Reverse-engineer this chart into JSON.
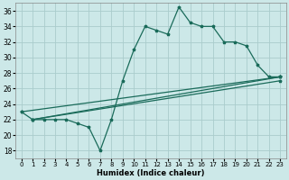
{
  "xlabel": "Humidex (Indice chaleur)",
  "ylabel": "",
  "bg_color": "#cce8e8",
  "grid_color": "#aacccc",
  "line_color": "#1a6b5a",
  "xlim": [
    -0.5,
    23.5
  ],
  "ylim": [
    17,
    37
  ],
  "yticks": [
    18,
    20,
    22,
    24,
    26,
    28,
    30,
    32,
    34,
    36
  ],
  "xticks": [
    0,
    1,
    2,
    3,
    4,
    5,
    6,
    7,
    8,
    9,
    10,
    11,
    12,
    13,
    14,
    15,
    16,
    17,
    18,
    19,
    20,
    21,
    22,
    23
  ],
  "line1_x": [
    0,
    1,
    2,
    3,
    4,
    5,
    6,
    7,
    8,
    9,
    10,
    11,
    12,
    13,
    14,
    15,
    16,
    17,
    18,
    19,
    20,
    21,
    22,
    23
  ],
  "line1_y": [
    23,
    22,
    22,
    22,
    22,
    21.5,
    21,
    18,
    22,
    27,
    31,
    34,
    33.5,
    33,
    36.5,
    34.5,
    34,
    34,
    32,
    32,
    31.5,
    29,
    27.5,
    27.5
  ],
  "line2_x": [
    0,
    23
  ],
  "line2_y": [
    23,
    27.5
  ],
  "line3_x": [
    1,
    23
  ],
  "line3_y": [
    22,
    27.5
  ],
  "line4_x": [
    1,
    23
  ],
  "line4_y": [
    22,
    27
  ],
  "marker_size": 2.5,
  "line_width": 0.9
}
